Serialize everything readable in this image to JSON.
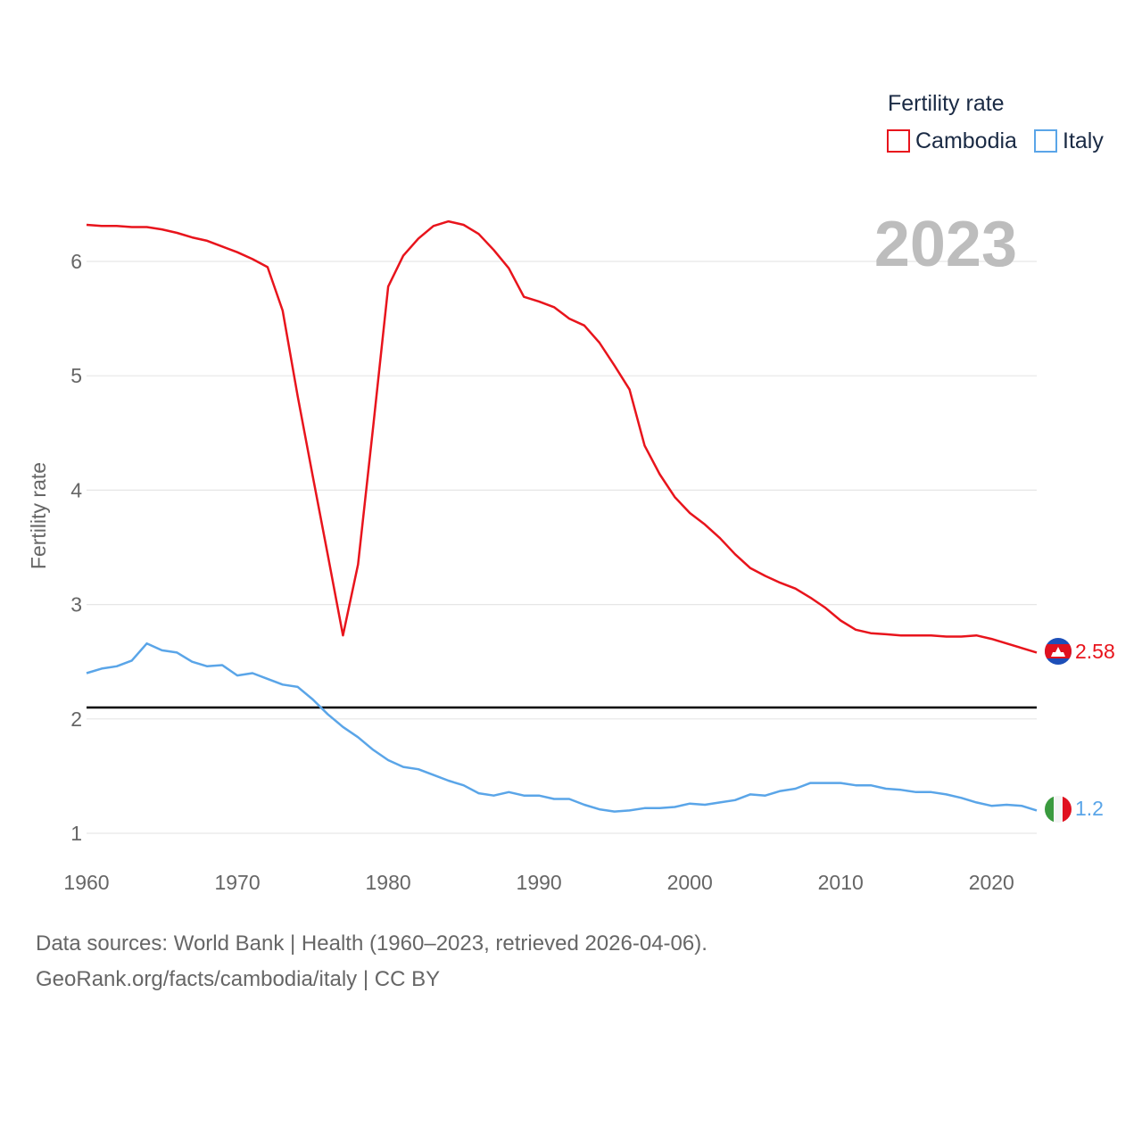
{
  "legend": {
    "title": "Fertility rate"
  },
  "year_label": "2023",
  "reference_line_value": 2.1,
  "footer": {
    "line1": "Data sources: World Bank | Health (1960–2023, retrieved 2026-04-06).",
    "line2": "GeoRank.org/facts/cambodia/italy | CC BY"
  },
  "chart_data": {
    "type": "line",
    "title": "Fertility rate",
    "xlabel": "",
    "ylabel": "Fertility rate",
    "xlim": [
      1960,
      2023
    ],
    "ylim": [
      1,
      6.4
    ],
    "x_ticks": [
      "1960",
      "1970",
      "1980",
      "1990",
      "2000",
      "2010",
      "2020"
    ],
    "y_ticks": [
      "1",
      "2",
      "3",
      "4",
      "5",
      "6"
    ],
    "grid": true,
    "legend_position": "top-right",
    "x": [
      1960,
      1961,
      1962,
      1963,
      1964,
      1965,
      1966,
      1967,
      1968,
      1969,
      1970,
      1971,
      1972,
      1973,
      1974,
      1975,
      1976,
      1977,
      1978,
      1979,
      1980,
      1981,
      1982,
      1983,
      1984,
      1985,
      1986,
      1987,
      1988,
      1989,
      1990,
      1991,
      1992,
      1993,
      1994,
      1995,
      1996,
      1997,
      1998,
      1999,
      2000,
      2001,
      2002,
      2003,
      2004,
      2005,
      2006,
      2007,
      2008,
      2009,
      2010,
      2011,
      2012,
      2013,
      2014,
      2015,
      2016,
      2017,
      2018,
      2019,
      2020,
      2021,
      2022,
      2023
    ],
    "series": [
      {
        "name": "Cambodia",
        "color": "#e8141c",
        "end_label": "2.58",
        "flag": "cambodia-flag",
        "values": [
          6.32,
          6.31,
          6.31,
          6.3,
          6.3,
          6.28,
          6.25,
          6.21,
          6.18,
          6.13,
          6.08,
          6.02,
          5.95,
          5.57,
          4.82,
          4.12,
          3.43,
          2.73,
          3.35,
          4.55,
          5.78,
          6.05,
          6.2,
          6.31,
          6.35,
          6.32,
          6.24,
          6.1,
          5.94,
          5.69,
          5.65,
          5.6,
          5.5,
          5.44,
          5.29,
          5.09,
          4.88,
          4.39,
          4.14,
          3.94,
          3.8,
          3.7,
          3.58,
          3.44,
          3.32,
          3.25,
          3.19,
          3.14,
          3.06,
          2.97,
          2.86,
          2.78,
          2.75,
          2.74,
          2.73,
          2.73,
          2.73,
          2.72,
          2.72,
          2.73,
          2.7,
          2.66,
          2.62,
          2.58
        ]
      },
      {
        "name": "Italy",
        "color": "#5aa5e8",
        "end_label": "1.2",
        "flag": "italy-flag",
        "values": [
          2.4,
          2.44,
          2.46,
          2.51,
          2.66,
          2.6,
          2.58,
          2.5,
          2.46,
          2.47,
          2.38,
          2.4,
          2.35,
          2.3,
          2.28,
          2.17,
          2.04,
          1.93,
          1.84,
          1.73,
          1.64,
          1.58,
          1.56,
          1.51,
          1.46,
          1.42,
          1.35,
          1.33,
          1.36,
          1.33,
          1.33,
          1.3,
          1.3,
          1.25,
          1.21,
          1.19,
          1.2,
          1.22,
          1.22,
          1.23,
          1.26,
          1.25,
          1.27,
          1.29,
          1.34,
          1.33,
          1.37,
          1.39,
          1.44,
          1.44,
          1.44,
          1.42,
          1.42,
          1.39,
          1.38,
          1.36,
          1.36,
          1.34,
          1.31,
          1.27,
          1.24,
          1.25,
          1.24,
          1.2
        ]
      }
    ]
  }
}
